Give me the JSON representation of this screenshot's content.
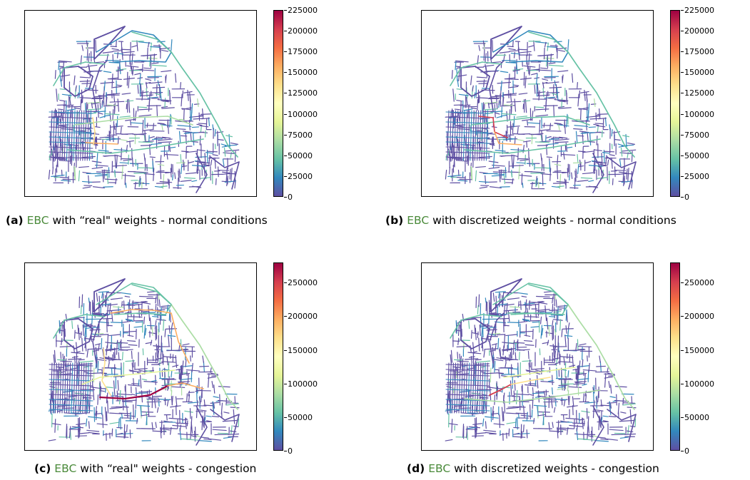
{
  "colorscale": [
    "#5e4fa2",
    "#3288bd",
    "#66c2a5",
    "#abdda4",
    "#e6f598",
    "#ffffbf",
    "#fee08b",
    "#fdae61",
    "#f46d43",
    "#d53e4f",
    "#9e0142"
  ],
  "panels": [
    {
      "caption": {
        "label": "(a)",
        "acronym": "EBC",
        "text": " with “real\" weights - normal conditions"
      },
      "chart_data": {
        "type": "network",
        "colorbar": {
          "min": 0,
          "max": 225000,
          "ticks": [
            "225000",
            "200000",
            "175000",
            "150000",
            "125000",
            "100000",
            "75000",
            "50000",
            "25000",
            "0"
          ]
        }
      }
    },
    {
      "caption": {
        "label": "(b)",
        "acronym": "EBC",
        "text": " with discretized weights - normal conditions"
      },
      "chart_data": {
        "type": "network",
        "colorbar": {
          "min": 0,
          "max": 225000,
          "ticks": [
            "225000",
            "200000",
            "175000",
            "150000",
            "125000",
            "100000",
            "75000",
            "50000",
            "25000",
            "0"
          ]
        }
      }
    },
    {
      "caption": {
        "label": "(c)",
        "acronym": "EBC",
        "text": " with “real\" weights - congestion"
      },
      "chart_data": {
        "type": "network",
        "colorbar": {
          "min": 0,
          "max": 280000,
          "ticks": [
            "250000",
            "200000",
            "150000",
            "100000",
            "50000",
            "0"
          ]
        }
      }
    },
    {
      "caption": {
        "label": "(d)",
        "acronym": "EBC",
        "text": " with discretized weights - congestion"
      },
      "chart_data": {
        "type": "network",
        "colorbar": {
          "min": 0,
          "max": 280000,
          "ticks": [
            "250000",
            "200000",
            "150000",
            "100000",
            "50000",
            "0"
          ]
        }
      }
    }
  ]
}
